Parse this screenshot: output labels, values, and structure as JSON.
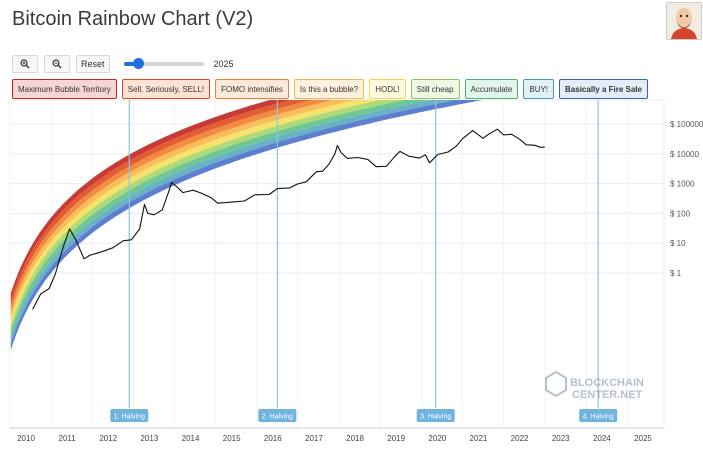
{
  "title": "Bitcoin Rainbow Chart (V2)",
  "toolbar": {
    "zoom_in_icon": "zoom-in-icon",
    "zoom_out_icon": "zoom-out-icon",
    "reset_label": "Reset",
    "year_label": "2025"
  },
  "watermark": {
    "line1": "BLOCKCHAIN",
    "line2": "CENTER.NET"
  },
  "chart_data": {
    "type": "line",
    "title": "Bitcoin Rainbow Chart (V2)",
    "y_scale": "log",
    "y_ticks": [
      "$ 100000",
      "$ 10000",
      "$ 1000",
      "$ 100",
      "$ 10",
      "$ 1"
    ],
    "y_tick_values": [
      100000,
      10000,
      1000,
      100,
      10,
      1
    ],
    "x_ticks": [
      "2010",
      "2011",
      "2012",
      "2013",
      "2014",
      "2015",
      "2016",
      "2017",
      "2018",
      "2019",
      "2020",
      "2021",
      "2022",
      "2023",
      "2024",
      "2025"
    ],
    "x_range": [
      2010,
      2025.9
    ],
    "grid": true,
    "bands": [
      {
        "name": "Maximum Bubble Territory",
        "color": "#c2261f",
        "fill": "#f7d5d2",
        "border": "#c2261f"
      },
      {
        "name": "Sell. Seriously, SELL!",
        "color": "#df4a1f",
        "fill": "#fde2d6",
        "border": "#df4a1f"
      },
      {
        "name": "FOMO intensifies",
        "color": "#f0802c",
        "fill": "#fde9d9",
        "border": "#f0802c"
      },
      {
        "name": "Is this a bubble?",
        "color": "#f7b64b",
        "fill": "#fef2de",
        "border": "#f7b64b"
      },
      {
        "name": "HODL!",
        "color": "#f5e05c",
        "fill": "#fefae0",
        "border": "#f0d84a"
      },
      {
        "name": "Still cheap",
        "color": "#a6d66b",
        "fill": "#eef8e2",
        "border": "#8cc55a"
      },
      {
        "name": "Accumulate",
        "color": "#5ec189",
        "fill": "#e2f5ea",
        "border": "#4cb078"
      },
      {
        "name": "BUY!",
        "color": "#5aa8c2",
        "fill": "#e2f1f6",
        "border": "#4a98b2"
      },
      {
        "name": "Basically a Fire Sale",
        "color": "#4a72c9",
        "fill": "#e6ecfa",
        "border": "#3a62b9"
      }
    ],
    "halvings": [
      {
        "label": "1. Halving",
        "x": 2012.9
      },
      {
        "label": "2. Halving",
        "x": 2016.5
      },
      {
        "label": "3. Halving",
        "x": 2020.35
      },
      {
        "label": "4. Halving",
        "x": 2024.3
      }
    ],
    "price_series": {
      "name": "BTC price",
      "points": [
        [
          2010.55,
          0.06
        ],
        [
          2010.75,
          0.2
        ],
        [
          2010.95,
          0.3
        ],
        [
          2011.1,
          0.9
        ],
        [
          2011.3,
          8
        ],
        [
          2011.45,
          30
        ],
        [
          2011.6,
          13
        ],
        [
          2011.8,
          3
        ],
        [
          2011.95,
          4
        ],
        [
          2012.2,
          5
        ],
        [
          2012.5,
          7
        ],
        [
          2012.75,
          12
        ],
        [
          2012.95,
          13
        ],
        [
          2013.15,
          30
        ],
        [
          2013.27,
          200
        ],
        [
          2013.35,
          100
        ],
        [
          2013.5,
          90
        ],
        [
          2013.7,
          130
        ],
        [
          2013.85,
          500
        ],
        [
          2013.93,
          1100
        ],
        [
          2014.05,
          800
        ],
        [
          2014.2,
          500
        ],
        [
          2014.45,
          600
        ],
        [
          2014.65,
          480
        ],
        [
          2014.9,
          330
        ],
        [
          2015.05,
          220
        ],
        [
          2015.4,
          240
        ],
        [
          2015.7,
          260
        ],
        [
          2015.95,
          420
        ],
        [
          2016.3,
          430
        ],
        [
          2016.5,
          680
        ],
        [
          2016.8,
          720
        ],
        [
          2016.98,
          960
        ],
        [
          2017.2,
          1150
        ],
        [
          2017.45,
          2500
        ],
        [
          2017.6,
          2600
        ],
        [
          2017.75,
          4400
        ],
        [
          2017.9,
          10000
        ],
        [
          2017.96,
          19000
        ],
        [
          2018.05,
          11000
        ],
        [
          2018.2,
          7000
        ],
        [
          2018.45,
          7500
        ],
        [
          2018.7,
          6500
        ],
        [
          2018.9,
          3700
        ],
        [
          2019.15,
          3800
        ],
        [
          2019.35,
          8000
        ],
        [
          2019.48,
          12000
        ],
        [
          2019.7,
          8300
        ],
        [
          2019.95,
          7200
        ],
        [
          2020.1,
          9300
        ],
        [
          2020.2,
          5000
        ],
        [
          2020.4,
          9500
        ],
        [
          2020.65,
          11500
        ],
        [
          2020.85,
          18000
        ],
        [
          2021.0,
          32000
        ],
        [
          2021.25,
          60000
        ],
        [
          2021.5,
          33000
        ],
        [
          2021.65,
          47000
        ],
        [
          2021.85,
          67000
        ],
        [
          2022.0,
          43000
        ],
        [
          2022.2,
          45000
        ],
        [
          2022.4,
          30000
        ],
        [
          2022.55,
          20000
        ],
        [
          2022.75,
          19500
        ],
        [
          2022.9,
          16500
        ],
        [
          2023.0,
          16800
        ]
      ]
    }
  }
}
